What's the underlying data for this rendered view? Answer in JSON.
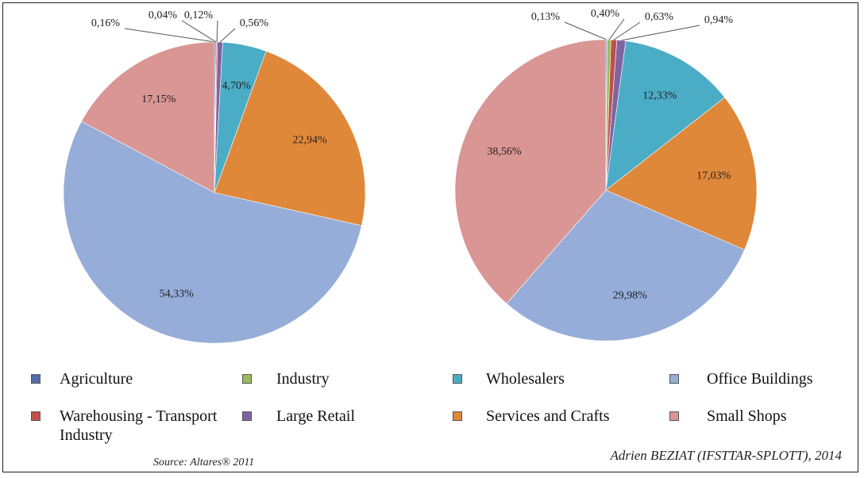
{
  "chart_data": [
    {
      "type": "pie",
      "categories": [
        "Agriculture",
        "Industry",
        "Warehousing - Transport Industry",
        "Large Retail",
        "Wholesalers",
        "Services and Crafts",
        "Office Buildings",
        "Small Shops"
      ],
      "values": [
        0.16,
        0.04,
        0.12,
        0.56,
        4.7,
        22.94,
        54.33,
        17.15
      ],
      "value_labels": [
        "0,16%",
        "0,04%",
        "0,12%",
        "0,56%",
        "4,70%",
        "22,94%",
        "54,33%",
        "17,15%"
      ],
      "colors": [
        "#4f6fa8",
        "#9bbb59",
        "#c0504d",
        "#8064a2",
        "#4bacc6",
        "#e0883a",
        "#95add8",
        "#d99694"
      ]
    },
    {
      "type": "pie",
      "values": [
        0.13,
        0.4,
        0.63,
        0.94,
        12.33,
        17.03,
        29.98,
        38.56
      ],
      "value_labels": [
        "0,13%",
        "0,40%",
        "0,63%",
        "0,94%",
        "12,33%",
        "17,03%",
        "29,98%",
        "38,56%"
      ],
      "colors": [
        "#4f6fa8",
        "#9bbb59",
        "#c0504d",
        "#8064a2",
        "#4bacc6",
        "#e0883a",
        "#95add8",
        "#d99694"
      ]
    }
  ],
  "source": "Source: Altares® 2011",
  "credit": "Adrien BEZIAT (IFSTTAR-SPLOTT), 2014"
}
